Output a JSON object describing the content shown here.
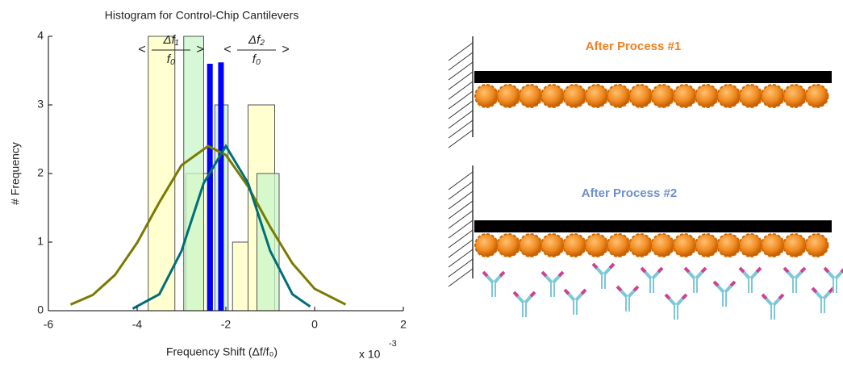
{
  "chart_data": {
    "type": "histogram",
    "title": "Histogram for Control-Chip Cantilevers",
    "x_label": "Frequency Shift (Δf/f₀)",
    "y_label": "# Frequency",
    "x_multiplier": "x 10",
    "x_exponent": "-3",
    "annotations": [
      {
        "open": "<",
        "numerator": "Δf₁",
        "denominator": "f₀",
        "close": ">"
      },
      {
        "open": "<",
        "numerator": "Δf₂",
        "denominator": "f₀",
        "close": ">"
      }
    ],
    "xlim": [
      -6,
      2
    ],
    "xticks": [
      -6,
      -4,
      -2,
      0,
      2
    ],
    "ylim": [
      0,
      4
    ],
    "yticks": [
      0,
      1,
      2,
      3,
      4
    ],
    "grid": false,
    "series": [
      {
        "type": "histogram",
        "color": "#ffffc0",
        "bins": [
          -3.75,
          -3.15,
          -2.9,
          -2.3,
          -1.85,
          -1.5,
          -0.9
        ],
        "values": [
          4,
          0,
          2,
          0,
          1,
          3
        ]
      },
      {
        "type": "histogram",
        "color": "#c8f5c8",
        "bins": [
          -2.95,
          -2.5,
          -2.25,
          -1.95,
          -1.3,
          -0.8
        ],
        "values": [
          4,
          0,
          3,
          0,
          2
        ]
      },
      {
        "type": "bar",
        "color": "#0000ff",
        "x": [
          -2.36,
          -2.11
        ],
        "values": [
          3.6,
          3.62
        ]
      },
      {
        "type": "line",
        "color": "#7a7a00",
        "x": [
          -5.5,
          -5,
          -4.5,
          -4,
          -3.5,
          -3,
          -2.4,
          -2,
          -1.5,
          -1,
          -0.5,
          0,
          0.7
        ],
        "values": [
          0.09,
          0.23,
          0.52,
          0.99,
          1.58,
          2.12,
          2.4,
          2.27,
          1.81,
          1.22,
          0.69,
          0.32,
          0.09
        ]
      },
      {
        "type": "line",
        "color": "#006e78",
        "x": [
          -4.1,
          -3.5,
          -3,
          -2.5,
          -2,
          -1.5,
          -1,
          -0.5,
          -0.1
        ],
        "values": [
          0.03,
          0.24,
          0.87,
          1.86,
          2.4,
          1.86,
          0.87,
          0.24,
          0.06
        ]
      }
    ]
  },
  "diagram": {
    "panels": [
      {
        "label": "After Process #1"
      },
      {
        "label": "After Process #2"
      }
    ]
  }
}
